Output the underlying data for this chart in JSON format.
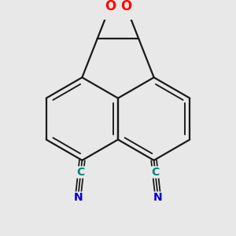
{
  "bg_color": "#e8e8e8",
  "bond_color": "#1a1a1a",
  "bond_width": 1.6,
  "O_color": "#ff0000",
  "C_color": "#008080",
  "N_color": "#0000cc",
  "font_size_O": 12,
  "font_size_C": 10,
  "font_size_N": 10,
  "fig_size": [
    3.0,
    3.0
  ],
  "dpi": 100,
  "xlim": [
    -2.2,
    2.2
  ],
  "ylim": [
    -2.8,
    2.4
  ]
}
